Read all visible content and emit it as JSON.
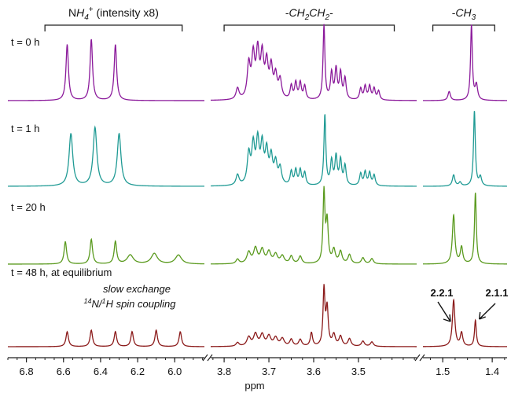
{
  "chart_data": {
    "type": "line",
    "xlabel": "ppm",
    "panels": [
      {
        "id": "nh4",
        "xlim": [
          6.9,
          5.84
        ],
        "ticks": [
          "6.8",
          "6.6",
          "6.4",
          "6.2",
          "6.0"
        ],
        "tick_values": [
          6.8,
          6.6,
          6.4,
          6.2,
          6.0
        ],
        "group_label": "NH",
        "group_label_sub": "4",
        "group_label_sup": "+",
        "group_label_tail": " (intensity x8)",
        "group_range": [
          6.7,
          5.96
        ]
      },
      {
        "id": "ch2",
        "xlim": [
          3.83,
          3.37
        ],
        "ticks": [
          "3.8",
          "3.7",
          "3.6",
          "3.5"
        ],
        "tick_values": [
          3.8,
          3.7,
          3.6,
          3.5
        ],
        "group_label": "-CH",
        "group_label_sub": "2",
        "group_label_mid": "CH",
        "group_label_sub2": "2",
        "group_label_tail": "-",
        "group_range": [
          3.8,
          3.42
        ]
      },
      {
        "id": "ch3",
        "xlim": [
          1.54,
          1.37
        ],
        "ticks": [
          "1.5",
          "1.4"
        ],
        "tick_values": [
          1.5,
          1.4
        ],
        "group_label": "-CH",
        "group_label_sub": "3",
        "group_range": [
          1.52,
          1.395
        ]
      }
    ],
    "series": [
      {
        "name": "t = 0 h",
        "color": "#8b1a9b",
        "peaks": {
          "nh4": [
            [
              6.58,
              0.75,
              0.008
            ],
            [
              6.45,
              0.82,
              0.008
            ],
            [
              6.32,
              0.75,
              0.008
            ]
          ],
          "ch2": [
            [
              3.745,
              0.45,
              0.004
            ],
            [
              3.735,
              0.55,
              0.004
            ],
            [
              3.725,
              0.6,
              0.004
            ],
            [
              3.715,
              0.55,
              0.004
            ],
            [
              3.705,
              0.45,
              0.004
            ],
            [
              3.695,
              0.4,
              0.004
            ],
            [
              3.685,
              0.3,
              0.004
            ],
            [
              3.675,
              0.25,
              0.004
            ],
            [
              3.65,
              0.18,
              0.003
            ],
            [
              3.64,
              0.22,
              0.003
            ],
            [
              3.63,
              0.22,
              0.003
            ],
            [
              3.62,
              0.18,
              0.003
            ],
            [
              3.577,
              1.0,
              0.0025
            ],
            [
              3.56,
              0.35,
              0.003
            ],
            [
              3.55,
              0.4,
              0.003
            ],
            [
              3.54,
              0.35,
              0.003
            ],
            [
              3.53,
              0.28,
              0.003
            ],
            [
              3.495,
              0.15,
              0.003
            ],
            [
              3.485,
              0.18,
              0.003
            ],
            [
              3.475,
              0.18,
              0.003
            ],
            [
              3.465,
              0.15,
              0.003
            ],
            [
              3.455,
              0.12,
              0.003
            ],
            [
              3.77,
              0.15,
              0.004
            ]
          ],
          "ch3": [
            [
              1.487,
              0.12,
              0.003
            ],
            [
              1.442,
              1.0,
              0.0022
            ],
            [
              1.432,
              0.2,
              0.003
            ]
          ]
        }
      },
      {
        "name": "t = 1 h",
        "color": "#1f9a94",
        "peaks": {
          "nh4": [
            [
              6.56,
              0.7,
              0.012
            ],
            [
              6.43,
              0.78,
              0.012
            ],
            [
              6.3,
              0.7,
              0.012
            ]
          ],
          "ch2": [
            [
              3.745,
              0.4,
              0.004
            ],
            [
              3.735,
              0.5,
              0.004
            ],
            [
              3.725,
              0.55,
              0.004
            ],
            [
              3.715,
              0.5,
              0.004
            ],
            [
              3.705,
              0.42,
              0.004
            ],
            [
              3.695,
              0.35,
              0.004
            ],
            [
              3.685,
              0.28,
              0.004
            ],
            [
              3.675,
              0.22,
              0.004
            ],
            [
              3.65,
              0.18,
              0.003
            ],
            [
              3.64,
              0.2,
              0.003
            ],
            [
              3.63,
              0.2,
              0.003
            ],
            [
              3.62,
              0.17,
              0.003
            ],
            [
              3.575,
              0.95,
              0.0025
            ],
            [
              3.56,
              0.32,
              0.003
            ],
            [
              3.55,
              0.38,
              0.003
            ],
            [
              3.54,
              0.33,
              0.003
            ],
            [
              3.53,
              0.26,
              0.003
            ],
            [
              3.495,
              0.16,
              0.003
            ],
            [
              3.485,
              0.18,
              0.003
            ],
            [
              3.475,
              0.17,
              0.003
            ],
            [
              3.465,
              0.14,
              0.003
            ],
            [
              3.77,
              0.14,
              0.004
            ]
          ],
          "ch3": [
            [
              1.478,
              0.15,
              0.003
            ],
            [
              1.465,
              0.05,
              0.003
            ],
            [
              1.436,
              1.0,
              0.0022
            ],
            [
              1.424,
              0.12,
              0.003
            ]
          ]
        }
      },
      {
        "name": "t = 20 h",
        "color": "#5a9a1e",
        "peaks": {
          "nh4": [
            [
              6.59,
              0.3,
              0.008
            ],
            [
              6.45,
              0.33,
              0.008
            ],
            [
              6.32,
              0.3,
              0.008
            ],
            [
              6.24,
              0.12,
              0.02
            ],
            [
              6.11,
              0.14,
              0.02
            ],
            [
              5.98,
              0.12,
              0.02
            ]
          ],
          "ch2": [
            [
              3.745,
              0.15,
              0.005
            ],
            [
              3.73,
              0.2,
              0.005
            ],
            [
              3.715,
              0.18,
              0.005
            ],
            [
              3.7,
              0.15,
              0.005
            ],
            [
              3.685,
              0.12,
              0.005
            ],
            [
              3.67,
              0.1,
              0.005
            ],
            [
              3.65,
              0.1,
              0.004
            ],
            [
              3.63,
              0.1,
              0.004
            ],
            [
              3.577,
              0.95,
              0.0025
            ],
            [
              3.57,
              0.55,
              0.003
            ],
            [
              3.555,
              0.18,
              0.004
            ],
            [
              3.54,
              0.16,
              0.004
            ],
            [
              3.52,
              0.12,
              0.004
            ],
            [
              3.49,
              0.08,
              0.004
            ],
            [
              3.47,
              0.07,
              0.004
            ],
            [
              3.77,
              0.06,
              0.004
            ]
          ],
          "ch3": [
            [
              1.478,
              0.65,
              0.003
            ],
            [
              1.462,
              0.22,
              0.003
            ],
            [
              1.434,
              0.95,
              0.0022
            ]
          ]
        }
      },
      {
        "name": "t = 48 h, at equilibrium",
        "color": "#8b1a1a",
        "peaks": {
          "nh4": [
            [
              6.58,
              0.2,
              0.008
            ],
            [
              6.45,
              0.22,
              0.008
            ],
            [
              6.32,
              0.2,
              0.008
            ],
            [
              6.23,
              0.2,
              0.008
            ],
            [
              6.1,
              0.22,
              0.008
            ],
            [
              5.97,
              0.2,
              0.008
            ]
          ],
          "ch2": [
            [
              3.745,
              0.12,
              0.005
            ],
            [
              3.73,
              0.16,
              0.005
            ],
            [
              3.715,
              0.15,
              0.005
            ],
            [
              3.7,
              0.13,
              0.005
            ],
            [
              3.685,
              0.11,
              0.005
            ],
            [
              3.67,
              0.1,
              0.005
            ],
            [
              3.65,
              0.09,
              0.004
            ],
            [
              3.63,
              0.09,
              0.004
            ],
            [
              3.605,
              0.18,
              0.003
            ],
            [
              3.577,
              0.75,
              0.0025
            ],
            [
              3.57,
              0.5,
              0.003
            ],
            [
              3.555,
              0.15,
              0.004
            ],
            [
              3.54,
              0.13,
              0.004
            ],
            [
              3.52,
              0.1,
              0.004
            ],
            [
              3.49,
              0.07,
              0.004
            ],
            [
              3.47,
              0.06,
              0.004
            ],
            [
              3.77,
              0.05,
              0.004
            ]
          ],
          "ch3": [
            [
              1.478,
              0.62,
              0.003
            ],
            [
              1.462,
              0.18,
              0.003
            ],
            [
              1.434,
              0.35,
              0.0022
            ]
          ]
        }
      }
    ],
    "annotations": [
      {
        "id": "slow",
        "text": "slow exchange"
      },
      {
        "id": "coupling",
        "pre_sup": "14",
        "t1": "N/",
        "sup2": "1",
        "t2": "H spin coupling"
      },
      {
        "id": "lab221",
        "text": "2.2.1",
        "target_ppm": 1.478
      },
      {
        "id": "lab211",
        "text": "2.1.1",
        "target_ppm": 1.434
      }
    ]
  }
}
